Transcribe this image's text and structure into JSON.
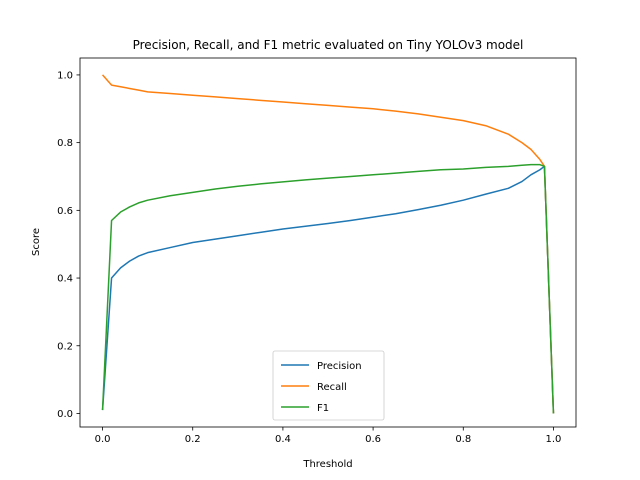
{
  "chart_data": {
    "type": "line",
    "title": "Precision, Recall, and F1 metric evaluated on Tiny YOLOv3 model",
    "xlabel": "Threshold",
    "ylabel": "Score",
    "xlim": [
      -0.05,
      1.05
    ],
    "ylim": [
      -0.04,
      1.05
    ],
    "xticks": [
      "0.0",
      "0.2",
      "0.4",
      "0.6",
      "0.8",
      "1.0"
    ],
    "yticks": [
      "0.0",
      "0.2",
      "0.4",
      "0.6",
      "0.8",
      "1.0"
    ],
    "grid": false,
    "legend": "bottom-center",
    "series": [
      {
        "name": "Precision",
        "color": "#1f77b4",
        "x": [
          0.0,
          0.02,
          0.04,
          0.06,
          0.08,
          0.1,
          0.15,
          0.2,
          0.25,
          0.3,
          0.35,
          0.4,
          0.45,
          0.5,
          0.55,
          0.6,
          0.65,
          0.7,
          0.75,
          0.8,
          0.85,
          0.9,
          0.93,
          0.95,
          0.97,
          0.98,
          1.0
        ],
        "y": [
          0.01,
          0.4,
          0.43,
          0.45,
          0.465,
          0.475,
          0.49,
          0.505,
          0.515,
          0.525,
          0.535,
          0.545,
          0.553,
          0.561,
          0.57,
          0.58,
          0.59,
          0.602,
          0.615,
          0.63,
          0.648,
          0.665,
          0.685,
          0.705,
          0.72,
          0.73,
          0.0
        ]
      },
      {
        "name": "Recall",
        "color": "#ff7f0e",
        "x": [
          0.0,
          0.02,
          0.04,
          0.06,
          0.08,
          0.1,
          0.15,
          0.2,
          0.25,
          0.3,
          0.35,
          0.4,
          0.45,
          0.5,
          0.55,
          0.6,
          0.65,
          0.7,
          0.75,
          0.8,
          0.85,
          0.9,
          0.93,
          0.95,
          0.97,
          0.98,
          1.0
        ],
        "y": [
          1.0,
          0.97,
          0.965,
          0.96,
          0.955,
          0.95,
          0.945,
          0.94,
          0.935,
          0.93,
          0.925,
          0.92,
          0.915,
          0.91,
          0.905,
          0.9,
          0.893,
          0.885,
          0.875,
          0.865,
          0.85,
          0.825,
          0.8,
          0.78,
          0.75,
          0.73,
          0.0
        ]
      },
      {
        "name": "F1",
        "color": "#2ca02c",
        "x": [
          0.0,
          0.02,
          0.04,
          0.06,
          0.08,
          0.1,
          0.15,
          0.2,
          0.25,
          0.3,
          0.35,
          0.4,
          0.45,
          0.5,
          0.55,
          0.6,
          0.65,
          0.7,
          0.75,
          0.8,
          0.85,
          0.9,
          0.93,
          0.95,
          0.97,
          0.98,
          1.0
        ],
        "y": [
          0.01,
          0.57,
          0.595,
          0.61,
          0.622,
          0.63,
          0.643,
          0.653,
          0.663,
          0.671,
          0.678,
          0.684,
          0.69,
          0.695,
          0.7,
          0.705,
          0.71,
          0.715,
          0.72,
          0.722,
          0.727,
          0.73,
          0.733,
          0.735,
          0.735,
          0.73,
          0.0
        ]
      }
    ]
  }
}
